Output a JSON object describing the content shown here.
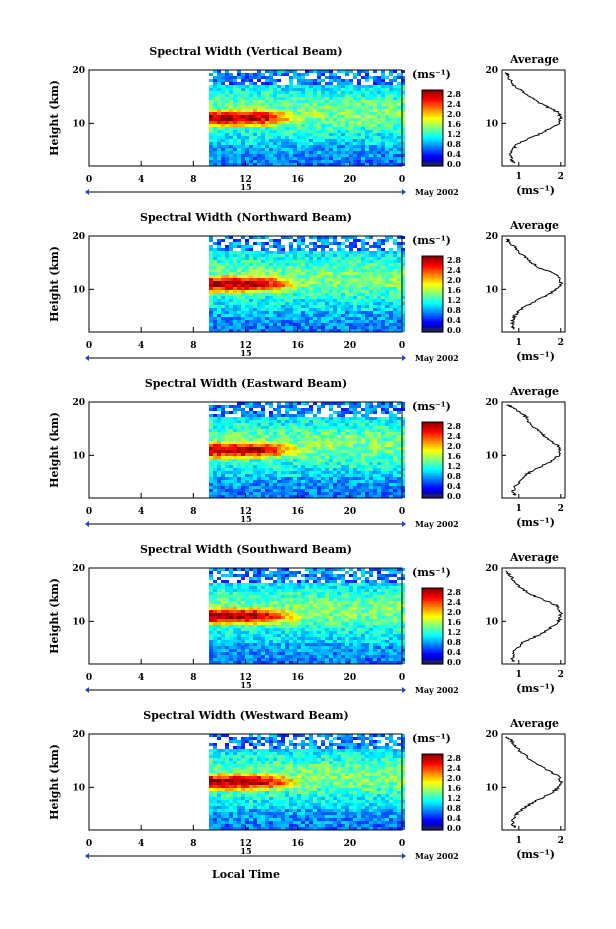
{
  "figure": {
    "xlabel": "Local Time",
    "date_label": "May 2002",
    "date_day": "15",
    "colorbar_unit": "(ms⁻¹)",
    "average_title": "Average",
    "average_xlabel": "(ms⁻¹)"
  },
  "chart_data": [
    {
      "type": "heatmap",
      "title": "Spectral Width (Vertical Beam)",
      "ylabel": "Height (km)",
      "x_ticks": [
        "0",
        "4",
        "8",
        "12",
        "16",
        "20",
        "0"
      ],
      "xlim": [
        0,
        24
      ],
      "y_ticks": [
        "20",
        "10"
      ],
      "ylim": [
        2,
        20
      ],
      "data_start_hour": 9.2,
      "colorbar": {
        "ticks": [
          "2.8",
          "2.4",
          "2.0",
          "1.6",
          "1.2",
          "0.8",
          "0.4",
          "0.0"
        ],
        "range": [
          0,
          2.8
        ]
      },
      "average": {
        "title": "Average",
        "x_ticks": [
          "1",
          "2"
        ],
        "xlim": [
          0.6,
          2.1
        ],
        "y_ticks": [
          "20",
          "10"
        ],
        "profile": [
          [
            2.5,
            0.9
          ],
          [
            3,
            0.85
          ],
          [
            4,
            0.8
          ],
          [
            5,
            0.85
          ],
          [
            6,
            0.95
          ],
          [
            7,
            1.2
          ],
          [
            8,
            1.5
          ],
          [
            9,
            1.75
          ],
          [
            10,
            1.95
          ],
          [
            11,
            2.0
          ],
          [
            12,
            1.95
          ],
          [
            13,
            1.7
          ],
          [
            14,
            1.45
          ],
          [
            15,
            1.25
          ],
          [
            16,
            1.1
          ],
          [
            17,
            0.9
          ],
          [
            18,
            0.8
          ],
          [
            19,
            0.75
          ],
          [
            19.5,
            0.7
          ]
        ]
      }
    },
    {
      "type": "heatmap",
      "title": "Spectral Width (Northward Beam)",
      "ylabel": "Height (km)",
      "x_ticks": [
        "0",
        "4",
        "8",
        "12",
        "16",
        "20",
        "0"
      ],
      "xlim": [
        0,
        24
      ],
      "y_ticks": [
        "20",
        "10"
      ],
      "ylim": [
        2,
        20
      ],
      "data_start_hour": 9.2,
      "colorbar": {
        "ticks": [
          "2.8",
          "2.4",
          "2.0",
          "1.6",
          "1.2",
          "0.8",
          "0.4",
          "0.0"
        ],
        "range": [
          0,
          2.8
        ]
      },
      "average": {
        "title": "Average",
        "x_ticks": [
          "1",
          "2"
        ],
        "xlim": [
          0.6,
          2.1
        ],
        "y_ticks": [
          "20",
          "10"
        ],
        "profile": [
          [
            2.5,
            0.9
          ],
          [
            3,
            0.85
          ],
          [
            4,
            0.85
          ],
          [
            5,
            0.9
          ],
          [
            6,
            1.0
          ],
          [
            7,
            1.2
          ],
          [
            8,
            1.45
          ],
          [
            9,
            1.7
          ],
          [
            10,
            1.9
          ],
          [
            11,
            2.0
          ],
          [
            12,
            2.0
          ],
          [
            13,
            1.85
          ],
          [
            14,
            1.5
          ],
          [
            15,
            1.3
          ],
          [
            16,
            1.15
          ],
          [
            17,
            1.0
          ],
          [
            18,
            0.9
          ],
          [
            19,
            0.75
          ],
          [
            19.5,
            0.7
          ]
        ]
      }
    },
    {
      "type": "heatmap",
      "title": "Spectral Width (Eastward Beam)",
      "ylabel": "Height (km)",
      "x_ticks": [
        "0",
        "4",
        "8",
        "12",
        "16",
        "20",
        "0"
      ],
      "xlim": [
        0,
        24
      ],
      "y_ticks": [
        "20",
        "10"
      ],
      "ylim": [
        2,
        20
      ],
      "data_start_hour": 9.2,
      "colorbar": {
        "ticks": [
          "2.8",
          "2.4",
          "2.0",
          "1.6",
          "1.2",
          "0.8",
          "0.4",
          "0.0"
        ],
        "range": [
          0,
          2.8
        ]
      },
      "average": {
        "title": "Average",
        "x_ticks": [
          "1",
          "2"
        ],
        "xlim": [
          0.6,
          2.1
        ],
        "y_ticks": [
          "20",
          "10"
        ],
        "profile": [
          [
            2.5,
            0.9
          ],
          [
            3,
            0.85
          ],
          [
            4,
            0.9
          ],
          [
            5,
            1.0
          ],
          [
            6,
            1.1
          ],
          [
            7,
            1.3
          ],
          [
            8,
            1.55
          ],
          [
            9,
            1.8
          ],
          [
            10,
            1.95
          ],
          [
            11,
            2.0
          ],
          [
            12,
            1.9
          ],
          [
            13,
            1.7
          ],
          [
            14,
            1.55
          ],
          [
            15,
            1.4
          ],
          [
            16,
            1.25
          ],
          [
            17,
            1.2
          ],
          [
            18,
            1.05
          ],
          [
            19,
            0.85
          ],
          [
            19.5,
            0.75
          ]
        ]
      }
    },
    {
      "type": "heatmap",
      "title": "Spectral Width (Southward Beam)",
      "ylabel": "Height (km)",
      "x_ticks": [
        "0",
        "4",
        "8",
        "12",
        "16",
        "20",
        "0"
      ],
      "xlim": [
        0,
        24
      ],
      "y_ticks": [
        "20",
        "10"
      ],
      "ylim": [
        2,
        20
      ],
      "data_start_hour": 9.2,
      "colorbar": {
        "ticks": [
          "2.8",
          "2.4",
          "2.0",
          "1.6",
          "1.2",
          "0.8",
          "0.4",
          "0.0"
        ],
        "range": [
          0,
          2.8
        ]
      },
      "average": {
        "title": "Average",
        "x_ticks": [
          "1",
          "2"
        ],
        "xlim": [
          0.6,
          2.1
        ],
        "y_ticks": [
          "20",
          "10"
        ],
        "profile": [
          [
            2.5,
            0.85
          ],
          [
            3,
            0.85
          ],
          [
            4,
            0.85
          ],
          [
            5,
            0.95
          ],
          [
            6,
            1.1
          ],
          [
            7,
            1.35
          ],
          [
            8,
            1.6
          ],
          [
            9,
            1.8
          ],
          [
            10,
            1.95
          ],
          [
            11,
            2.0
          ],
          [
            12,
            2.0
          ],
          [
            13,
            1.9
          ],
          [
            14,
            1.6
          ],
          [
            15,
            1.3
          ],
          [
            16,
            1.1
          ],
          [
            17,
            0.95
          ],
          [
            18,
            0.85
          ],
          [
            19,
            0.75
          ],
          [
            19.5,
            0.7
          ]
        ]
      }
    },
    {
      "type": "heatmap",
      "title": "Spectral Width (Westward Beam)",
      "ylabel": "Height (km)",
      "x_ticks": [
        "0",
        "4",
        "8",
        "12",
        "16",
        "20",
        "0"
      ],
      "xlim": [
        0,
        24
      ],
      "y_ticks": [
        "20",
        "10"
      ],
      "ylim": [
        2,
        20
      ],
      "data_start_hour": 9.2,
      "colorbar": {
        "ticks": [
          "2.8",
          "2.4",
          "2.0",
          "1.6",
          "1.2",
          "0.8",
          "0.4",
          "0.0"
        ],
        "range": [
          0,
          2.8
        ]
      },
      "average": {
        "title": "Average",
        "x_ticks": [
          "1",
          "2"
        ],
        "xlim": [
          0.6,
          2.1
        ],
        "y_ticks": [
          "20",
          "10"
        ],
        "profile": [
          [
            2.5,
            0.9
          ],
          [
            3,
            0.85
          ],
          [
            4,
            0.85
          ],
          [
            5,
            0.95
          ],
          [
            6,
            1.1
          ],
          [
            7,
            1.3
          ],
          [
            8,
            1.55
          ],
          [
            9,
            1.8
          ],
          [
            10,
            1.95
          ],
          [
            11,
            2.0
          ],
          [
            12,
            1.95
          ],
          [
            13,
            1.75
          ],
          [
            14,
            1.5
          ],
          [
            15,
            1.3
          ],
          [
            16,
            1.15
          ],
          [
            17,
            1.0
          ],
          [
            18,
            0.9
          ],
          [
            19,
            0.8
          ],
          [
            19.5,
            0.7
          ]
        ]
      }
    }
  ]
}
